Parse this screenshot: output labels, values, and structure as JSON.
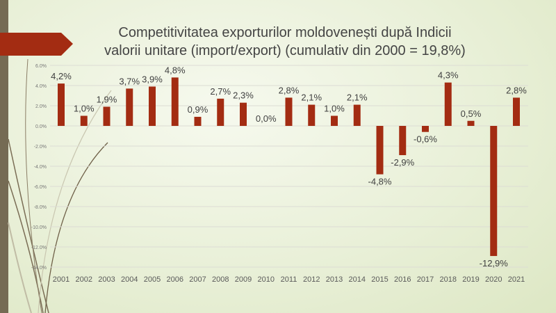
{
  "chart_data": {
    "type": "bar",
    "title": "Competitivitatea exporturilor moldovenești după Indicii valorii unitare (import/export) (cumulativ din 2000 = 19,8%)",
    "title_lines": [
      "Competitivitatea exporturilor moldovenești după Indicii",
      "valorii unitare (import/export) (cumulativ din 2000 = 19,8%)"
    ],
    "categories": [
      "2001",
      "2002",
      "2003",
      "2004",
      "2005",
      "2006",
      "2007",
      "2008",
      "2009",
      "2010",
      "2011",
      "2012",
      "2013",
      "2014",
      "2015",
      "2016",
      "2017",
      "2018",
      "2019",
      "2020",
      "2021"
    ],
    "values": [
      4.2,
      1.0,
      1.9,
      3.7,
      3.9,
      4.8,
      0.9,
      2.7,
      2.3,
      0.0,
      2.8,
      2.1,
      1.0,
      2.1,
      -4.8,
      -2.9,
      -0.6,
      4.3,
      0.5,
      -12.9,
      2.8
    ],
    "data_labels": [
      "4,2%",
      "1,0%",
      "1,9%",
      "3,7%",
      "3,9%",
      "4,8%",
      "0,9%",
      "2,7%",
      "2,3%",
      "0,0%",
      "2,8%",
      "2,1%",
      "1,0%",
      "2,1%",
      "-4,8%",
      "-2,9%",
      "-0,6%",
      "4,3%",
      "0,5%",
      "-12,9%",
      "2,8%"
    ],
    "yticks": [
      6,
      4,
      2,
      0,
      -2,
      -4,
      -6,
      -8,
      -10,
      -12,
      -14
    ],
    "ytick_labels": [
      "6.0%",
      "4.0%",
      "2.0%",
      "0.0%",
      "-2.0%",
      "-4.0%",
      "-6.0%",
      "-8.0%",
      "-10.0%",
      "-12.0%",
      "-14.0%"
    ],
    "ylim": [
      -14,
      6
    ],
    "xlabel": "",
    "ylabel": "",
    "grid": true,
    "bar_color": "#a32c12"
  }
}
